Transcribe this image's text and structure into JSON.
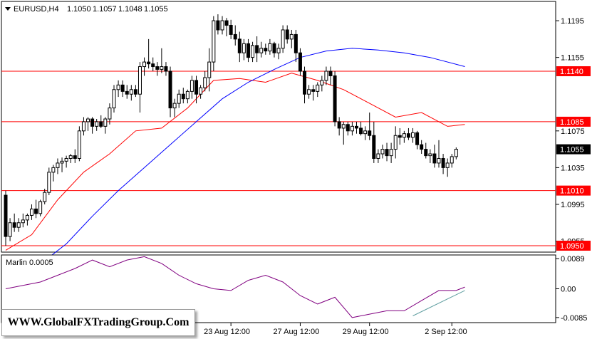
{
  "header": {
    "symbol": "EURUSD,H4",
    "open": "1.1050",
    "high": "1.1057",
    "low": "1.1048",
    "close": "1.1055"
  },
  "watermark": "WWW.GlobalFXTradingGroup.Com",
  "chart_data": [
    {
      "type": "candlestick",
      "panel": "price",
      "ylim": [
        1.0943,
        1.1216
      ],
      "grid": false,
      "y_ticks": [
        "1.1195",
        "1.1155",
        "1.1075",
        "1.1035",
        "1.0995",
        "1.0955"
      ],
      "x_ticks": [
        "23 Aug 12:00",
        "27 Aug 12:00",
        "29 Aug 12:00",
        "2 Sep 12:00"
      ],
      "levels": [
        {
          "value": 1.114,
          "label": "1.1140"
        },
        {
          "value": 1.1085,
          "label": "1.1085"
        },
        {
          "value": 1.101,
          "label": "1.1010"
        },
        {
          "value": 1.095,
          "label": "1.0950"
        }
      ],
      "current_price": {
        "value": 1.1055,
        "label": "1.1055"
      },
      "candles": [
        [
          1.1005,
          1.101,
          1.095,
          1.096
        ],
        [
          1.096,
          1.098,
          1.0955,
          1.0975
        ],
        [
          1.0975,
          1.0985,
          1.0965,
          1.097
        ],
        [
          1.097,
          1.098,
          1.0965,
          1.0975
        ],
        [
          1.0975,
          1.0985,
          1.097,
          1.0978
        ],
        [
          1.0978,
          1.0985,
          1.0972,
          1.0983
        ],
        [
          1.0983,
          1.0995,
          1.0978,
          1.099
        ],
        [
          1.099,
          1.1,
          1.098,
          1.0985
        ],
        [
          1.0985,
          1.1,
          1.0982,
          1.0998
        ],
        [
          1.0998,
          1.1012,
          1.0995,
          1.1008
        ],
        [
          1.1008,
          1.1035,
          1.1005,
          1.103
        ],
        [
          1.103,
          1.1038,
          1.102,
          1.1035
        ],
        [
          1.1035,
          1.1045,
          1.1028,
          1.104
        ],
        [
          1.104,
          1.1046,
          1.103,
          1.1042
        ],
        [
          1.1042,
          1.1048,
          1.1035,
          1.1045
        ],
        [
          1.1045,
          1.105,
          1.104,
          1.1048
        ],
        [
          1.1048,
          1.1055,
          1.104,
          1.1045
        ],
        [
          1.1045,
          1.108,
          1.1042,
          1.1075
        ],
        [
          1.1075,
          1.109,
          1.107,
          1.1085
        ],
        [
          1.1085,
          1.109,
          1.1075,
          1.1088
        ],
        [
          1.1088,
          1.109,
          1.1072,
          1.108
        ],
        [
          1.108,
          1.1088,
          1.1075,
          1.1085
        ],
        [
          1.1085,
          1.1092,
          1.1078,
          1.108
        ],
        [
          1.108,
          1.109,
          1.1072,
          1.1088
        ],
        [
          1.1088,
          1.1105,
          1.1082,
          1.11
        ],
        [
          1.11,
          1.1125,
          1.1095,
          1.112
        ],
        [
          1.112,
          1.113,
          1.1112,
          1.1125
        ],
        [
          1.1125,
          1.113,
          1.1112,
          1.1118
        ],
        [
          1.1118,
          1.1125,
          1.111,
          1.1115
        ],
        [
          1.1115,
          1.1125,
          1.1108,
          1.112
        ],
        [
          1.112,
          1.1125,
          1.1112,
          1.1115
        ],
        [
          1.1115,
          1.115,
          1.1095,
          1.1145
        ],
        [
          1.1145,
          1.1155,
          1.1135,
          1.115
        ],
        [
          1.115,
          1.1175,
          1.1143,
          1.1148
        ],
        [
          1.1148,
          1.1155,
          1.114,
          1.1145
        ],
        [
          1.1145,
          1.115,
          1.1135,
          1.1142
        ],
        [
          1.1142,
          1.1165,
          1.1138,
          1.1145
        ],
        [
          1.1145,
          1.115,
          1.1135,
          1.114
        ],
        [
          1.114,
          1.1145,
          1.109,
          1.11
        ],
        [
          1.11,
          1.111,
          1.109,
          1.1105
        ],
        [
          1.1105,
          1.112,
          1.11,
          1.1115
        ],
        [
          1.1115,
          1.1122,
          1.1105,
          1.111
        ],
        [
          1.111,
          1.112,
          1.1105,
          1.1118
        ],
        [
          1.1118,
          1.1135,
          1.111,
          1.113
        ],
        [
          1.113,
          1.1135,
          1.1105,
          1.1115
        ],
        [
          1.1115,
          1.1125,
          1.111,
          1.1122
        ],
        [
          1.1122,
          1.114,
          1.1118,
          1.1133
        ],
        [
          1.1133,
          1.1165,
          1.1118,
          1.115
        ],
        [
          1.115,
          1.12,
          1.114,
          1.1195
        ],
        [
          1.1195,
          1.1202,
          1.118,
          1.1185
        ],
        [
          1.1185,
          1.12,
          1.118,
          1.1195
        ],
        [
          1.1195,
          1.1198,
          1.1178,
          1.119
        ],
        [
          1.119,
          1.1196,
          1.1175,
          1.118
        ],
        [
          1.118,
          1.119,
          1.1168,
          1.1175
        ],
        [
          1.1175,
          1.1183,
          1.115,
          1.116
        ],
        [
          1.116,
          1.1175,
          1.1152,
          1.117
        ],
        [
          1.117,
          1.1175,
          1.115,
          1.1155
        ],
        [
          1.1155,
          1.1172,
          1.115,
          1.1168
        ],
        [
          1.1168,
          1.1178,
          1.115,
          1.116
        ],
        [
          1.116,
          1.1172,
          1.1155,
          1.1165
        ],
        [
          1.1165,
          1.117,
          1.1158,
          1.1162
        ],
        [
          1.1162,
          1.1175,
          1.1158,
          1.117
        ],
        [
          1.117,
          1.1172,
          1.1155,
          1.116
        ],
        [
          1.116,
          1.117,
          1.1153,
          1.1165
        ],
        [
          1.1165,
          1.119,
          1.116,
          1.1185
        ],
        [
          1.1185,
          1.119,
          1.117,
          1.1175
        ],
        [
          1.1175,
          1.1185,
          1.1165,
          1.118
        ],
        [
          1.118,
          1.1185,
          1.115,
          1.116
        ],
        [
          1.116,
          1.1165,
          1.1135,
          1.114
        ],
        [
          1.114,
          1.1145,
          1.1105,
          1.1115
        ],
        [
          1.1115,
          1.1125,
          1.111,
          1.112
        ],
        [
          1.112,
          1.1125,
          1.1108,
          1.1118
        ],
        [
          1.1118,
          1.1128,
          1.1112,
          1.1125
        ],
        [
          1.1125,
          1.1135,
          1.1118,
          1.113
        ],
        [
          1.113,
          1.1145,
          1.1125,
          1.114
        ],
        [
          1.114,
          1.1145,
          1.1125,
          1.1135
        ],
        [
          1.1135,
          1.114,
          1.108,
          1.1085
        ],
        [
          1.1085,
          1.109,
          1.107,
          1.1078
        ],
        [
          1.1078,
          1.1085,
          1.106,
          1.1082
        ],
        [
          1.1082,
          1.1085,
          1.107,
          1.1075
        ],
        [
          1.1075,
          1.1085,
          1.107,
          1.108
        ],
        [
          1.108,
          1.1085,
          1.1072,
          1.1078
        ],
        [
          1.1078,
          1.1085,
          1.107,
          1.1072
        ],
        [
          1.1072,
          1.108,
          1.1065,
          1.1075
        ],
        [
          1.1075,
          1.1095,
          1.1065,
          1.107
        ],
        [
          1.107,
          1.1085,
          1.104,
          1.1045
        ],
        [
          1.1045,
          1.1055,
          1.104,
          1.105
        ],
        [
          1.105,
          1.106,
          1.1045,
          1.1055
        ],
        [
          1.1055,
          1.1062,
          1.1042,
          1.1048
        ],
        [
          1.1048,
          1.1062,
          1.104,
          1.1055
        ],
        [
          1.1055,
          1.108,
          1.1045,
          1.107
        ],
        [
          1.107,
          1.1078,
          1.106,
          1.1068
        ],
        [
          1.1068,
          1.1075,
          1.1062,
          1.1072
        ],
        [
          1.1072,
          1.1078,
          1.1065,
          1.1068
        ],
        [
          1.1068,
          1.1078,
          1.1062,
          1.1073
        ],
        [
          1.1073,
          1.1075,
          1.1055,
          1.106
        ],
        [
          1.106,
          1.1065,
          1.105,
          1.1055
        ],
        [
          1.1055,
          1.1062,
          1.1045,
          1.1048
        ],
        [
          1.1048,
          1.1055,
          1.104,
          1.105
        ],
        [
          1.105,
          1.106,
          1.1035,
          1.104
        ],
        [
          1.104,
          1.1065,
          1.1035,
          1.1045
        ],
        [
          1.1045,
          1.105,
          1.1028,
          1.1035
        ],
        [
          1.1035,
          1.1045,
          1.1025,
          1.104
        ],
        [
          1.104,
          1.105,
          1.1035,
          1.1047
        ],
        [
          1.1047,
          1.1057,
          1.1044,
          1.1055
        ]
      ],
      "series": [
        {
          "type": "line",
          "color": "#ff0000",
          "values": [
            [
              0,
              1.0945
            ],
            [
              6,
              1.0962
            ],
            [
              12,
              1.1
            ],
            [
              18,
              1.103
            ],
            [
              24,
              1.105
            ],
            [
              30,
              1.1075
            ],
            [
              36,
              1.1078
            ],
            [
              42,
              1.11
            ],
            [
              48,
              1.113
            ],
            [
              54,
              1.1132
            ],
            [
              60,
              1.1128
            ],
            [
              66,
              1.1138
            ],
            [
              72,
              1.113
            ],
            [
              78,
              1.112
            ],
            [
              84,
              1.1105
            ],
            [
              90,
              1.109
            ],
            [
              96,
              1.1095
            ],
            [
              102,
              1.108
            ],
            [
              106,
              1.1082
            ]
          ]
        },
        {
          "type": "line",
          "color": "#0000ff",
          "values": [
            [
              8,
              1.093
            ],
            [
              14,
              1.0952
            ],
            [
              20,
              1.0982
            ],
            [
              26,
              1.101
            ],
            [
              32,
              1.1035
            ],
            [
              38,
              1.106
            ],
            [
              44,
              1.1085
            ],
            [
              50,
              1.111
            ],
            [
              56,
              1.1128
            ],
            [
              62,
              1.1142
            ],
            [
              68,
              1.1155
            ],
            [
              74,
              1.1162
            ],
            [
              80,
              1.1165
            ],
            [
              86,
              1.1163
            ],
            [
              92,
              1.116
            ],
            [
              98,
              1.1155
            ],
            [
              106,
              1.1145
            ]
          ]
        }
      ]
    },
    {
      "type": "line",
      "panel": "indicator",
      "title": "Marlin 0.0005",
      "ylim": [
        -0.01,
        0.01
      ],
      "y_ticks": [
        "0.0089",
        "0.00",
        "-0.0085"
      ],
      "series": [
        {
          "color": "#800080",
          "values": [
            [
              0,
              0.0
            ],
            [
              4,
              0.001
            ],
            [
              8,
              0.002
            ],
            [
              12,
              0.004
            ],
            [
              16,
              0.006
            ],
            [
              20,
              0.0085
            ],
            [
              24,
              0.0065
            ],
            [
              28,
              0.0085
            ],
            [
              32,
              0.0095
            ],
            [
              36,
              0.0075
            ],
            [
              40,
              0.004
            ],
            [
              44,
              0.0015
            ],
            [
              48,
              0.0
            ],
            [
              52,
              -0.0005
            ],
            [
              56,
              0.0025
            ],
            [
              60,
              0.004
            ],
            [
              64,
              0.002
            ],
            [
              68,
              -0.002
            ],
            [
              72,
              -0.0045
            ],
            [
              76,
              -0.0025
            ],
            [
              80,
              -0.0085
            ],
            [
              84,
              -0.0075
            ],
            [
              88,
              -0.0065
            ],
            [
              92,
              -0.0065
            ],
            [
              96,
              -0.0035
            ],
            [
              100,
              -0.0005
            ],
            [
              104,
              -0.0005
            ],
            [
              106,
              0.0005
            ]
          ]
        },
        {
          "color": "#5f9ea0",
          "values": [
            [
              94,
              -0.008
            ],
            [
              106,
              -0.0005
            ]
          ]
        }
      ]
    }
  ]
}
